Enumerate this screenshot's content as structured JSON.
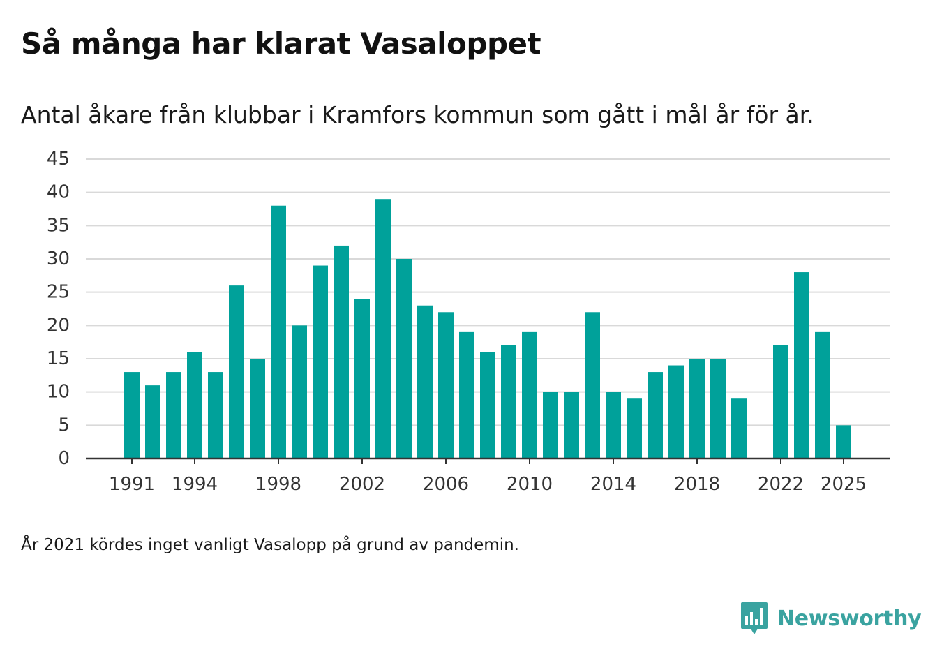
{
  "title": "Så många har klarat Vasaloppet",
  "subtitle": "Antal åkare från klubbar i Kramfors kommun som gått i mål år för år.",
  "footnote": "År 2021 kördes inget vanligt Vasalopp på grund av pandemin.",
  "brand": {
    "name": "Newsworthy",
    "logo_icon": "bar-chart-speech-bubble-icon",
    "color": "#3aa3a0"
  },
  "colors": {
    "bar": "#00a19a",
    "grid": "#d9d9d9",
    "axis": "#333333"
  },
  "chart_data": {
    "type": "bar",
    "title": "Så många har klarat Vasaloppet",
    "subtitle": "Antal åkare från klubbar i Kramfors kommun som gått i mål år för år.",
    "xlabel": "",
    "ylabel": "",
    "ylim": [
      0,
      45
    ],
    "yticks": [
      0,
      5,
      10,
      15,
      20,
      25,
      30,
      35,
      40,
      45
    ],
    "xtick_labels": [
      "1991",
      "1994",
      "1998",
      "2002",
      "2006",
      "2010",
      "2014",
      "2018",
      "2022",
      "2025"
    ],
    "grid": true,
    "legend": "none",
    "categories": [
      "1991",
      "1992",
      "1993",
      "1994",
      "1995",
      "1996",
      "1997",
      "1998",
      "1999",
      "2000",
      "2001",
      "2002",
      "2003",
      "2004",
      "2005",
      "2006",
      "2007",
      "2008",
      "2009",
      "2010",
      "2011",
      "2012",
      "2013",
      "2014",
      "2015",
      "2016",
      "2017",
      "2018",
      "2019",
      "2020",
      "2021",
      "2022",
      "2023",
      "2024",
      "2025"
    ],
    "values": [
      13,
      11,
      13,
      16,
      13,
      26,
      15,
      38,
      20,
      29,
      32,
      24,
      39,
      30,
      23,
      22,
      19,
      16,
      17,
      19,
      10,
      10,
      22,
      10,
      9,
      13,
      14,
      15,
      15,
      9,
      null,
      17,
      28,
      19,
      5
    ]
  }
}
